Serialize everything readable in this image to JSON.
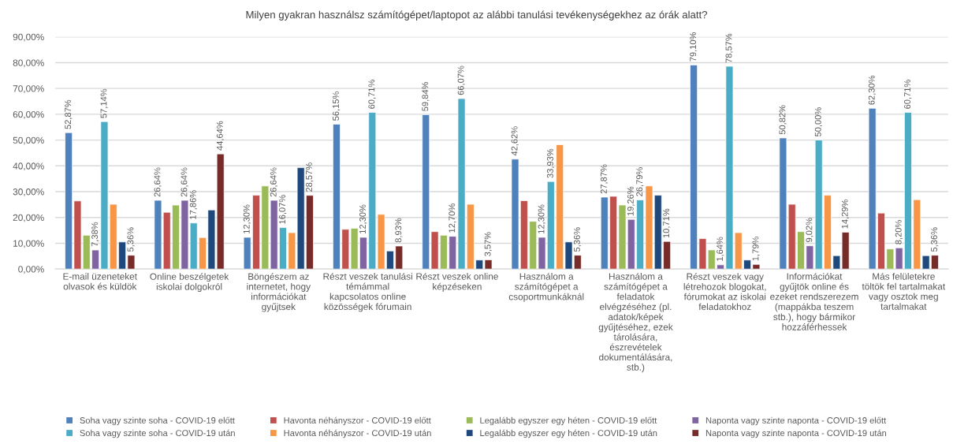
{
  "chart_data": {
    "type": "bar",
    "title": "Milyen gyakran használsz számítógépet/laptopot az alábbi tanulási tevékenységekhez az órák alatt?",
    "categories": [
      "E-mail üzeneteket\nolvasok és küldök",
      "Online beszélgetek\niskolai dolgokról",
      "Böngészem az\ninternetet, hogy\ninformációkat\ngyűjtsek",
      "Részt veszek tanulási\ntémámmal\nkapcsolatos online\nközösségek fórumain",
      "Részt veszek online\nképzéseken",
      "Használom a\nszámítógépet a\ncsoportmunkáknál",
      "Használom a\nszámítógépet a\nfeladatok\nelvégzéséhez (pl.\nadatok/képek\ngyűjtéséhez, ezek\ntárolására,\nészrevételek\ndokumentálására,\nstb.)",
      "Részt veszek vagy\nlétrehozok blogokat,\nfórumokat az iskolai\nfeladatokhoz",
      "Információkat\ngyűjtök online és\nezeket rendszerezem\n(mappákba teszem\nstb.), hogy bármikor\nhozzáférhessek",
      "Más felületekre\ntöltök fel tartalmakat\nvagy osztok meg\ntartalmakat"
    ],
    "series": [
      {
        "name": "Soha vagy szinte soha - COVID-19 előtt",
        "color": "#4f81bd",
        "values": [
          52.87,
          26.64,
          12.3,
          56.15,
          59.84,
          42.62,
          27.87,
          79.1,
          50.82,
          62.3
        ],
        "value_labels": [
          "52,87%",
          "26,64%",
          "12,30%",
          "56,15%",
          "59,84%",
          "42,62%",
          "27,87%",
          "79,10%",
          "50,82%",
          "62,30%"
        ]
      },
      {
        "name": "Havonta néhányszor - COVID-19 előtt",
        "color": "#c0504d",
        "values": [
          26.4,
          22.0,
          28.6,
          15.4,
          14.5,
          26.5,
          28.2,
          11.8,
          25.1,
          21.7
        ]
      },
      {
        "name": "Legalább egyszer egy héten - COVID-19 előtt",
        "color": "#9bbb59",
        "values": [
          13.1,
          24.8,
          32.2,
          15.8,
          13.1,
          18.5,
          24.8,
          7.4,
          14.5,
          7.8
        ]
      },
      {
        "name": "Naponta vagy szinte naponta - COVID-19 előtt",
        "color": "#8064a2",
        "values": [
          7.38,
          26.64,
          26.64,
          12.3,
          12.7,
          12.3,
          19.26,
          1.64,
          9.02,
          8.2
        ],
        "value_labels": [
          "7,38%",
          "26,64%",
          "26,64%",
          "12,30%",
          "12,70%",
          "12,30%",
          "19,26%",
          "1,64%",
          "9,02%",
          "8,20%"
        ]
      },
      {
        "name": "Soha vagy szinte soha - COVID-19 után",
        "color": "#4bacc6",
        "values": [
          57.14,
          17.86,
          16.07,
          60.71,
          66.07,
          33.93,
          26.79,
          78.57,
          50.0,
          60.71
        ],
        "value_labels": [
          "57,14%",
          "17,86%",
          "16,07%",
          "60,71%",
          "66,07%",
          "33,93%",
          "26,79%",
          "78,57%",
          "50,00%",
          "60,71%"
        ]
      },
      {
        "name": "Havonta néhányszor - COVID-19 után",
        "color": "#f79646",
        "values": [
          25.1,
          12.2,
          14.1,
          21.2,
          25.1,
          48.2,
          32.2,
          14.1,
          28.6,
          26.9
        ]
      },
      {
        "name": "Legalább egyszer egy héten - COVID-19 után",
        "color": "#1f497d",
        "values": [
          10.5,
          22.9,
          39.3,
          7.0,
          3.5,
          10.5,
          28.6,
          3.5,
          5.2,
          5.2
        ]
      },
      {
        "name": "Naponta vagy szinte naponta - COVID-19 után",
        "color": "#772c2a",
        "values": [
          5.36,
          44.64,
          28.57,
          8.93,
          3.57,
          5.36,
          10.71,
          1.79,
          14.29,
          5.36
        ],
        "value_labels": [
          "5,36%",
          "44,64%",
          "28,57%",
          "8,93%",
          "3,57%",
          "5,36%",
          "10,71%",
          "1,79%",
          "14,29%",
          "5,36%"
        ]
      }
    ],
    "ylim": [
      0,
      90
    ],
    "yticks": [
      {
        "value": 0,
        "label": "0,00%"
      },
      {
        "value": 10,
        "label": "10,00%"
      },
      {
        "value": 20,
        "label": "20,00%"
      },
      {
        "value": 30,
        "label": "30,00%"
      },
      {
        "value": 40,
        "label": "40,00%"
      },
      {
        "value": 50,
        "label": "50,00%"
      },
      {
        "value": 60,
        "label": "60,00%"
      },
      {
        "value": 70,
        "label": "70,00%"
      },
      {
        "value": 80,
        "label": "80,00%"
      },
      {
        "value": 90,
        "label": "90,00%"
      }
    ],
    "grid": "y",
    "legend": "bottom"
  }
}
